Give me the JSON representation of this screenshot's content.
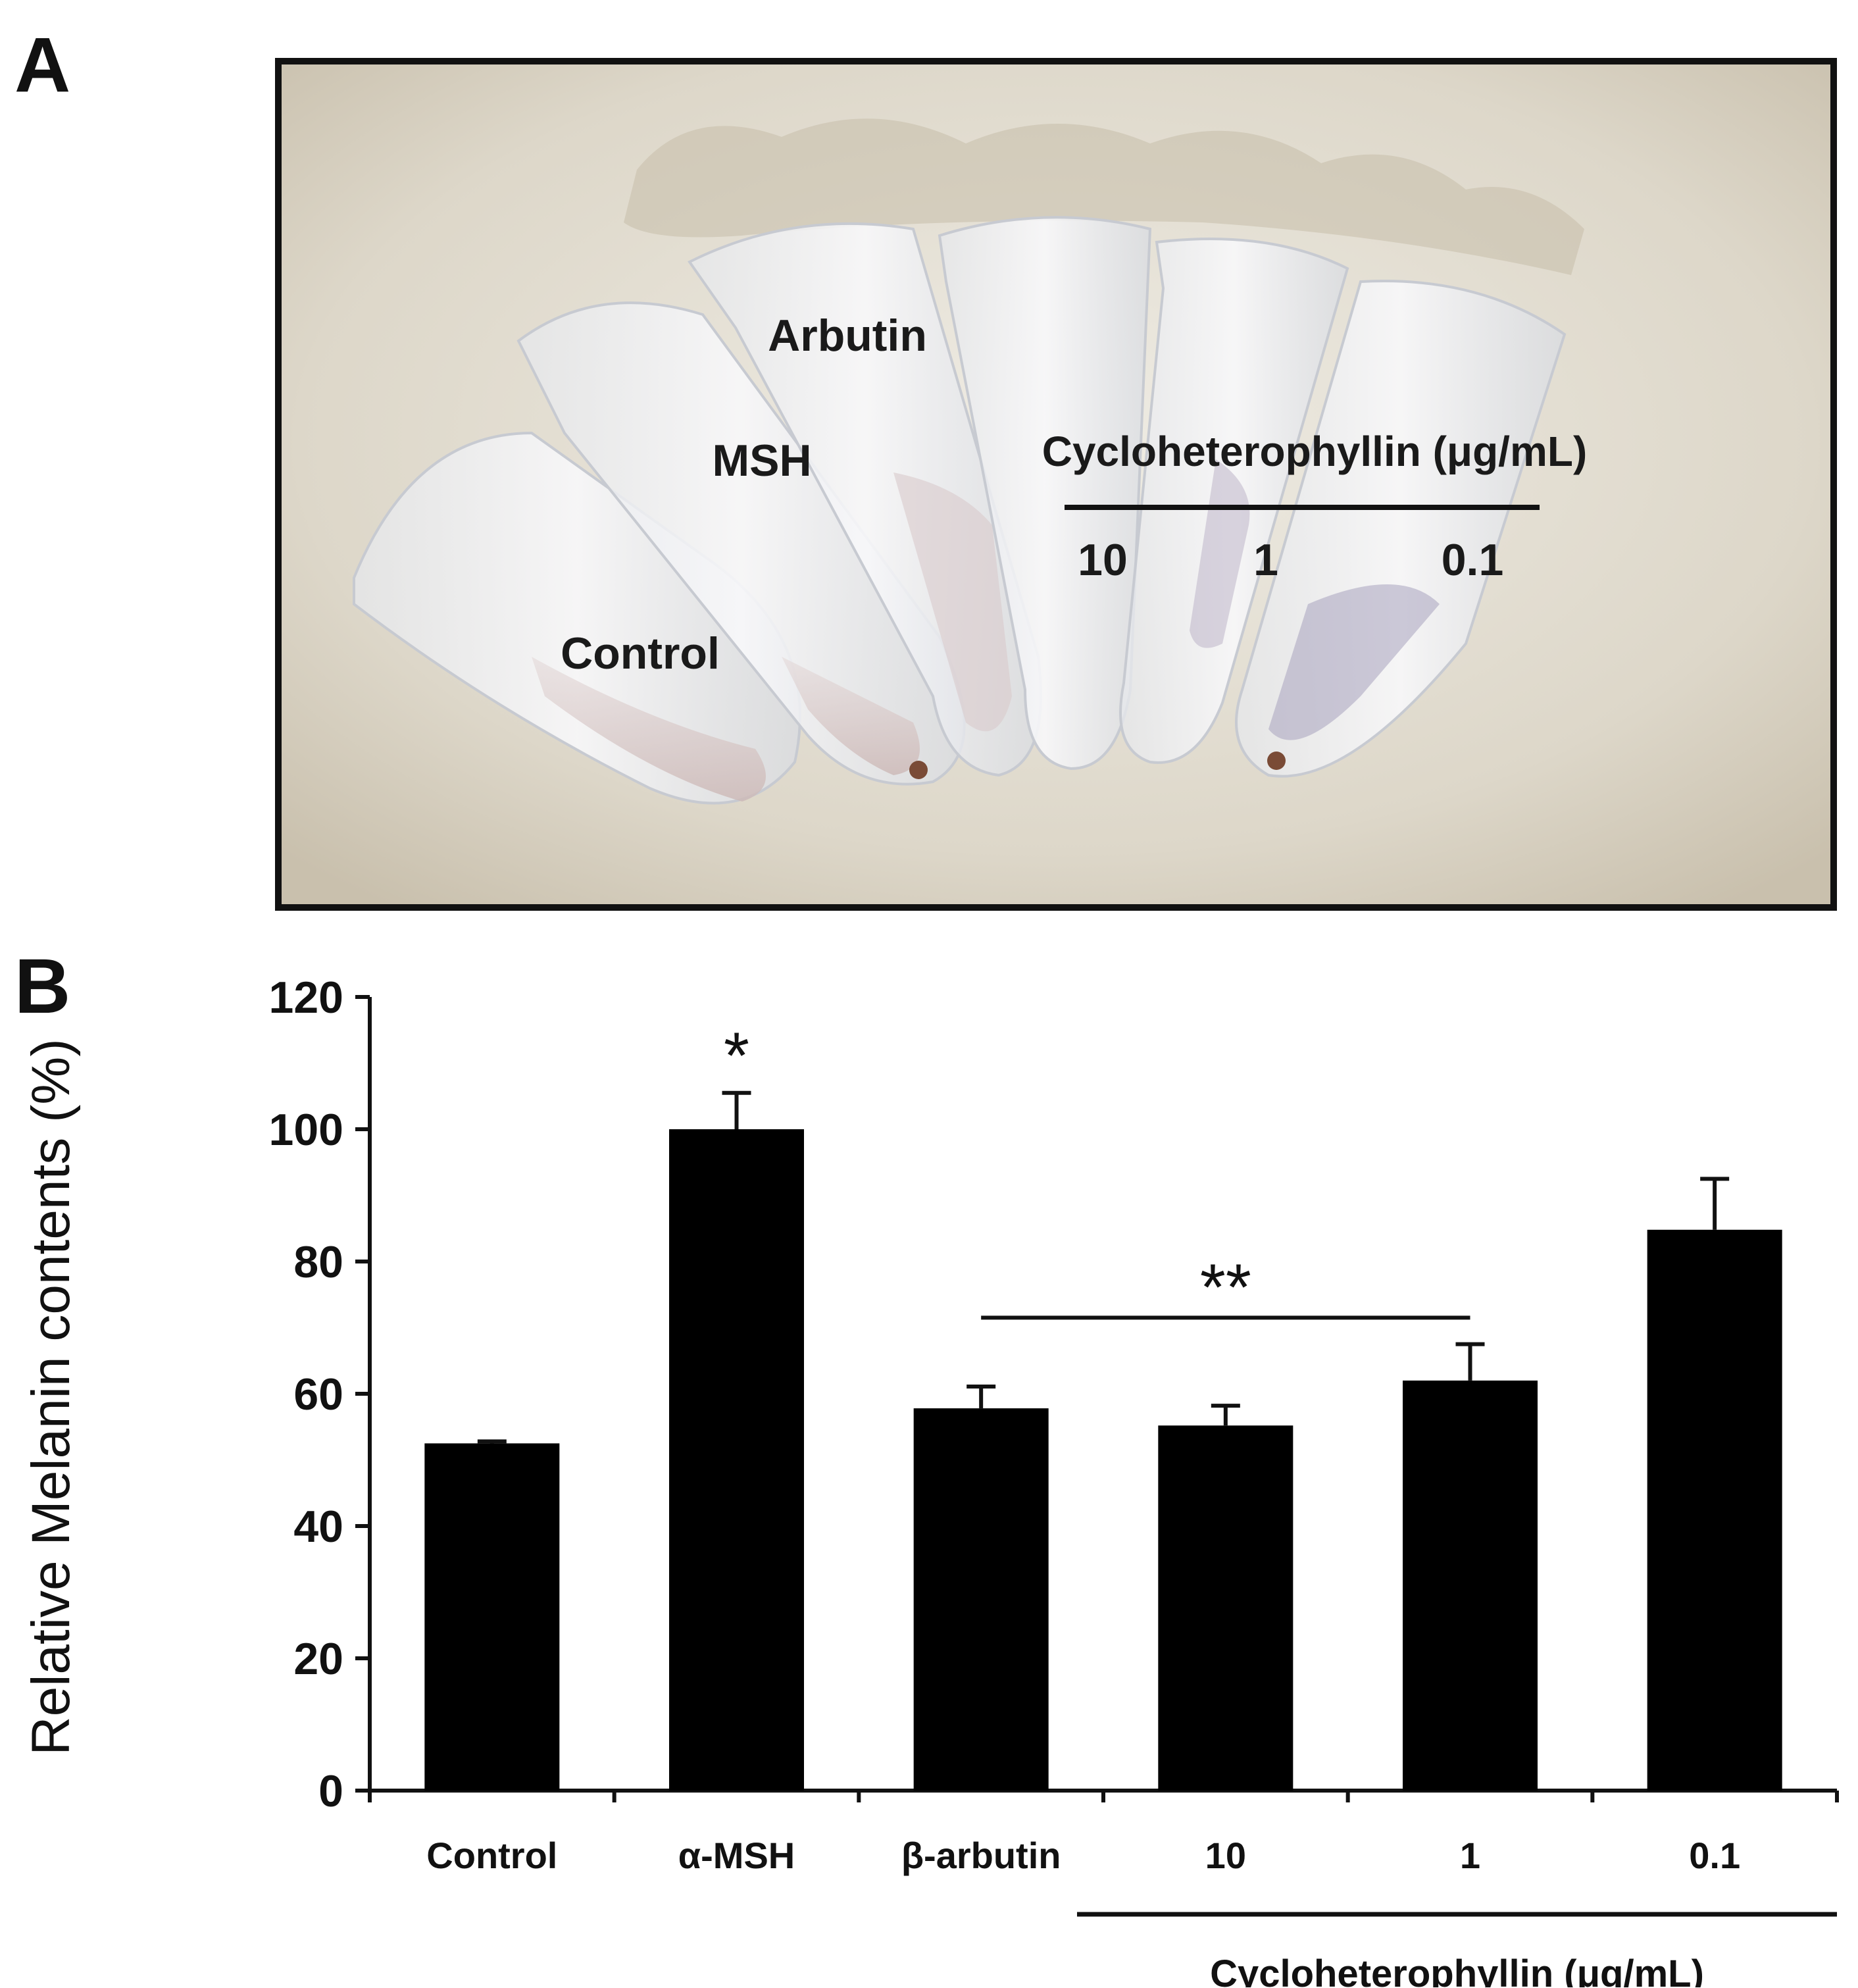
{
  "panel_a": {
    "letter": "A",
    "labels": {
      "control": "Control",
      "msh": "MSH",
      "arbutin": "Arbutin",
      "group_title": "Cycloheterophyllin (μg/mL)",
      "doses": [
        "10",
        "1",
        "0.1"
      ]
    }
  },
  "panel_b": {
    "letter": "B"
  },
  "chart_data": {
    "type": "bar",
    "categories": [
      "Control",
      "α-MSH",
      "β-arbutin",
      "10",
      "1",
      "0.1"
    ],
    "values": [
      52.5,
      100,
      57.8,
      55.2,
      62.0,
      84.8
    ],
    "errors": [
      0.3,
      5.5,
      3.3,
      3.0,
      5.5,
      7.7
    ],
    "ylabel": "Relative Melanin contents (%)",
    "yticks": [
      "0",
      "20",
      "40",
      "60",
      "80",
      "100",
      "120"
    ],
    "ylim": [
      0,
      120
    ],
    "bar_color": "#000000",
    "group_label": "Cycloheterophyllin (μg/mL)",
    "annotations": [
      {
        "text": "*",
        "category": "α-MSH"
      },
      {
        "text": "**",
        "span": [
          "β-arbutin",
          "1"
        ]
      }
    ]
  }
}
